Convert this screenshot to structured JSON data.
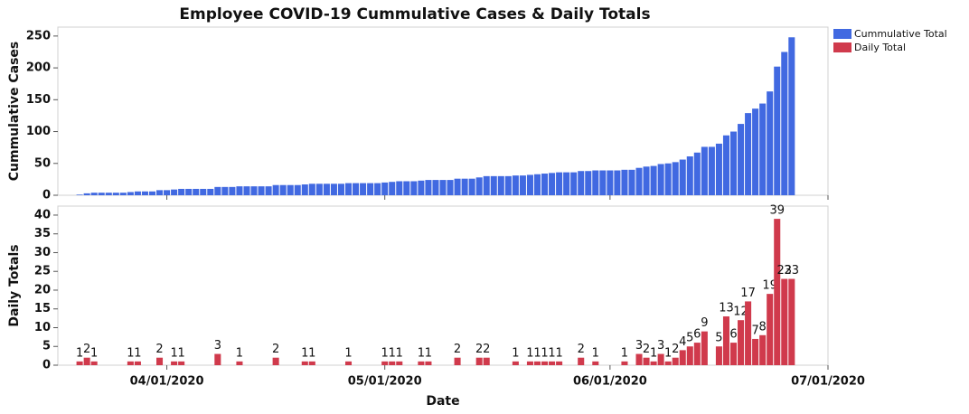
{
  "chart_data": [
    {
      "type": "bar",
      "title": "Employee COVID-19 Cummulative Cases & Daily Totals",
      "ylabel": "Cummulative Cases",
      "x": [
        "03/20/2020",
        "03/21/2020",
        "03/22/2020",
        "03/23/2020",
        "03/24/2020",
        "03/25/2020",
        "03/26/2020",
        "03/27/2020",
        "03/28/2020",
        "03/29/2020",
        "03/30/2020",
        "03/31/2020",
        "04/01/2020",
        "04/02/2020",
        "04/03/2020",
        "04/04/2020",
        "04/05/2020",
        "04/06/2020",
        "04/07/2020",
        "04/08/2020",
        "04/09/2020",
        "04/10/2020",
        "04/11/2020",
        "04/12/2020",
        "04/13/2020",
        "04/14/2020",
        "04/15/2020",
        "04/16/2020",
        "04/17/2020",
        "04/18/2020",
        "04/19/2020",
        "04/20/2020",
        "04/21/2020",
        "04/22/2020",
        "04/23/2020",
        "04/24/2020",
        "04/25/2020",
        "04/26/2020",
        "04/27/2020",
        "04/28/2020",
        "04/29/2020",
        "04/30/2020",
        "05/01/2020",
        "05/02/2020",
        "05/03/2020",
        "05/04/2020",
        "05/05/2020",
        "05/06/2020",
        "05/07/2020",
        "05/08/2020",
        "05/09/2020",
        "05/10/2020",
        "05/11/2020",
        "05/12/2020",
        "05/13/2020",
        "05/14/2020",
        "05/15/2020",
        "05/16/2020",
        "05/17/2020",
        "05/18/2020",
        "05/19/2020",
        "05/20/2020",
        "05/21/2020",
        "05/22/2020",
        "05/23/2020",
        "05/24/2020",
        "05/25/2020",
        "05/26/2020",
        "05/27/2020",
        "05/28/2020",
        "05/29/2020",
        "05/30/2020",
        "05/31/2020",
        "06/01/2020",
        "06/02/2020",
        "06/03/2020",
        "06/04/2020",
        "06/05/2020",
        "06/06/2020",
        "06/07/2020",
        "06/08/2020",
        "06/09/2020",
        "06/10/2020",
        "06/11/2020",
        "06/12/2020",
        "06/13/2020",
        "06/14/2020",
        "06/15/2020",
        "06/16/2020",
        "06/17/2020",
        "06/18/2020",
        "06/19/2020",
        "06/20/2020",
        "06/21/2020",
        "06/22/2020",
        "06/23/2020",
        "06/24/2020",
        "06/25/2020",
        "06/26/2020"
      ],
      "xlim": [
        "03/17/2020",
        "07/01/2020"
      ],
      "ylim": [
        0,
        264
      ],
      "yticks": [
        0,
        50,
        100,
        150,
        200,
        250
      ],
      "legend": "right",
      "series": [
        {
          "name": "Cummulative Total",
          "color": "#4169e1",
          "values": [
            1,
            3,
            4,
            4,
            4,
            4,
            4,
            5,
            6,
            6,
            6,
            8,
            8,
            9,
            10,
            10,
            10,
            10,
            10,
            13,
            13,
            13,
            14,
            14,
            14,
            14,
            14,
            16,
            16,
            16,
            16,
            17,
            18,
            18,
            18,
            18,
            18,
            19,
            19,
            19,
            19,
            19,
            20,
            21,
            22,
            22,
            22,
            23,
            24,
            24,
            24,
            24,
            26,
            26,
            26,
            28,
            30,
            30,
            30,
            30,
            31,
            31,
            32,
            33,
            34,
            35,
            36,
            36,
            36,
            38,
            38,
            39,
            39,
            39,
            39,
            40,
            40,
            43,
            45,
            46,
            49,
            50,
            52,
            56,
            61,
            67,
            76,
            76,
            81,
            94,
            100,
            112,
            129,
            136,
            144,
            163,
            202,
            225,
            248
          ]
        }
      ]
    },
    {
      "type": "bar",
      "ylabel": "Daily Totals",
      "xlabel": "Date",
      "x": [
        "03/20/2020",
        "03/21/2020",
        "03/22/2020",
        "03/23/2020",
        "03/24/2020",
        "03/25/2020",
        "03/26/2020",
        "03/27/2020",
        "03/28/2020",
        "03/29/2020",
        "03/30/2020",
        "03/31/2020",
        "04/01/2020",
        "04/02/2020",
        "04/03/2020",
        "04/04/2020",
        "04/05/2020",
        "04/06/2020",
        "04/07/2020",
        "04/08/2020",
        "04/09/2020",
        "04/10/2020",
        "04/11/2020",
        "04/12/2020",
        "04/13/2020",
        "04/14/2020",
        "04/15/2020",
        "04/16/2020",
        "04/17/2020",
        "04/18/2020",
        "04/19/2020",
        "04/20/2020",
        "04/21/2020",
        "04/22/2020",
        "04/23/2020",
        "04/24/2020",
        "04/25/2020",
        "04/26/2020",
        "04/27/2020",
        "04/28/2020",
        "04/29/2020",
        "04/30/2020",
        "05/01/2020",
        "05/02/2020",
        "05/03/2020",
        "05/04/2020",
        "05/05/2020",
        "05/06/2020",
        "05/07/2020",
        "05/08/2020",
        "05/09/2020",
        "05/10/2020",
        "05/11/2020",
        "05/12/2020",
        "05/13/2020",
        "05/14/2020",
        "05/15/2020",
        "05/16/2020",
        "05/17/2020",
        "05/18/2020",
        "05/19/2020",
        "05/20/2020",
        "05/21/2020",
        "05/22/2020",
        "05/23/2020",
        "05/24/2020",
        "05/25/2020",
        "05/26/2020",
        "05/27/2020",
        "05/28/2020",
        "05/29/2020",
        "05/30/2020",
        "05/31/2020",
        "06/01/2020",
        "06/02/2020",
        "06/03/2020",
        "06/04/2020",
        "06/05/2020",
        "06/06/2020",
        "06/07/2020",
        "06/08/2020",
        "06/09/2020",
        "06/10/2020",
        "06/11/2020",
        "06/12/2020",
        "06/13/2020",
        "06/14/2020",
        "06/15/2020",
        "06/16/2020",
        "06/17/2020",
        "06/18/2020",
        "06/19/2020",
        "06/20/2020",
        "06/21/2020",
        "06/22/2020",
        "06/23/2020",
        "06/24/2020",
        "06/25/2020",
        "06/26/2020"
      ],
      "xlim": [
        "03/17/2020",
        "07/01/2020"
      ],
      "xticks": [
        "04/01/2020",
        "05/01/2020",
        "06/01/2020",
        "07/01/2020"
      ],
      "ylim": [
        0,
        42.4
      ],
      "yticks": [
        0,
        5,
        10,
        15,
        20,
        25,
        30,
        35,
        40
      ],
      "series": [
        {
          "name": "Daily Total",
          "color": "#d03a4c",
          "values": [
            1,
            2,
            1,
            0,
            0,
            0,
            0,
            1,
            1,
            0,
            0,
            2,
            0,
            1,
            1,
            0,
            0,
            0,
            0,
            3,
            0,
            0,
            1,
            0,
            0,
            0,
            0,
            2,
            0,
            0,
            0,
            1,
            1,
            0,
            0,
            0,
            0,
            1,
            0,
            0,
            0,
            0,
            1,
            1,
            1,
            0,
            0,
            1,
            1,
            0,
            0,
            0,
            2,
            0,
            0,
            2,
            2,
            0,
            0,
            0,
            1,
            0,
            1,
            1,
            1,
            1,
            1,
            0,
            0,
            2,
            0,
            1,
            0,
            0,
            0,
            1,
            0,
            3,
            2,
            1,
            3,
            1,
            2,
            4,
            5,
            6,
            9,
            0,
            5,
            13,
            6,
            12,
            17,
            7,
            8,
            19,
            39,
            23,
            23
          ]
        }
      ]
    }
  ]
}
